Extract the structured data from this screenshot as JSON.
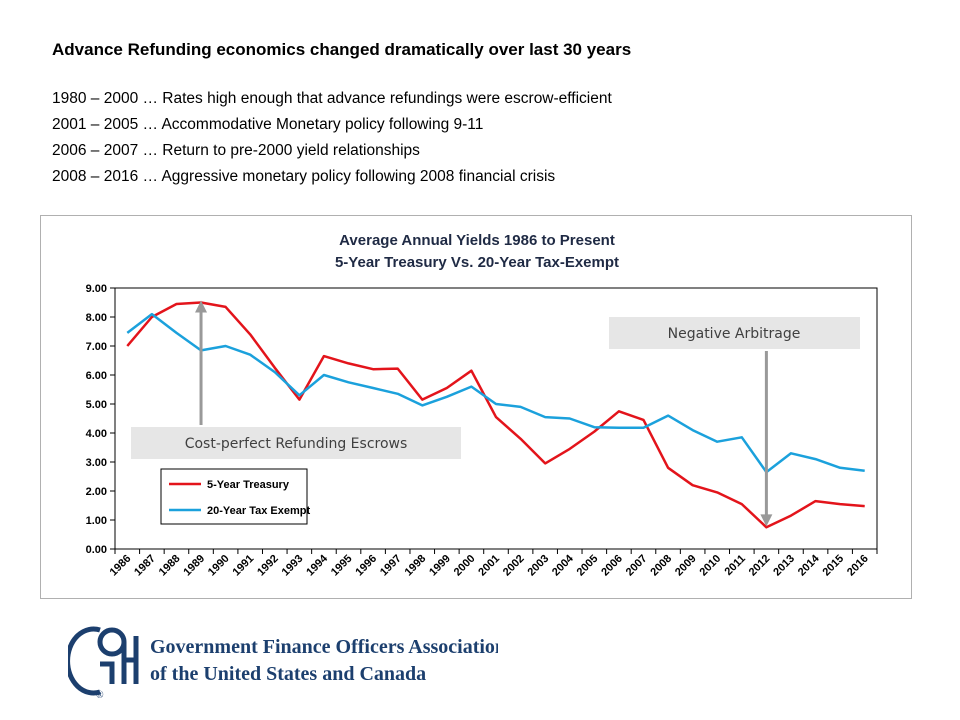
{
  "slide": {
    "title": "Advance Refunding economics changed dramatically over last 30 years",
    "bullets": [
      "1980 – 2000 … Rates high enough that advance refundings were escrow-efficient",
      "2001 – 2005 … Accommodative Monetary policy following 9-11",
      "2006 – 2007 … Return to pre-2000 yield relationships",
      "2008 – 2016 … Aggressive monetary policy following 2008 financial crisis"
    ]
  },
  "chart_data": {
    "type": "line",
    "title": "Average Annual Yields 1986 to Present",
    "subtitle": "5-Year Treasury  Vs.  20-Year Tax-Exempt",
    "x": [
      "1986",
      "1987",
      "1988",
      "1989",
      "1990",
      "1991",
      "1992",
      "1993",
      "1994",
      "1995",
      "1996",
      "1997",
      "1998",
      "1999",
      "2000",
      "2001",
      "2002",
      "2003",
      "2004",
      "2005",
      "2006",
      "2007",
      "2008",
      "2009",
      "2010",
      "2011",
      "2012",
      "2013",
      "2014",
      "2015",
      "2016"
    ],
    "ylim": [
      0,
      9
    ],
    "yticks": [
      "0.00",
      "1.00",
      "2.00",
      "3.00",
      "4.00",
      "5.00",
      "6.00",
      "7.00",
      "8.00",
      "9.00"
    ],
    "grid": false,
    "legend_position": "bottom-left",
    "series": [
      {
        "name": "5-Year Treasury",
        "color": "#e3141b",
        "values": [
          7.0,
          8.0,
          8.45,
          8.5,
          8.35,
          7.4,
          6.25,
          5.15,
          6.65,
          6.4,
          6.2,
          6.22,
          5.15,
          5.55,
          6.15,
          4.55,
          3.8,
          2.95,
          3.45,
          4.05,
          4.75,
          4.45,
          2.8,
          2.2,
          1.95,
          1.55,
          0.75,
          1.15,
          1.65,
          1.55,
          1.48
        ]
      },
      {
        "name": "20-Year Tax Exempt",
        "color": "#1ba1dc",
        "values": [
          7.45,
          8.1,
          7.45,
          6.85,
          7.0,
          6.7,
          6.1,
          5.3,
          6.0,
          5.75,
          5.55,
          5.35,
          4.95,
          5.25,
          5.6,
          5.0,
          4.9,
          4.55,
          4.5,
          4.2,
          4.18,
          4.18,
          4.6,
          4.1,
          3.7,
          3.85,
          2.65,
          3.3,
          3.1,
          2.8,
          2.7
        ]
      }
    ],
    "annotations": [
      {
        "text": "Cost-perfect Refunding Escrows",
        "arrow_to_year": "1989",
        "arrow_to_value": 8.5
      },
      {
        "text": "Negative Arbitrage",
        "arrow_to_year": "2012",
        "arrow_to_value": 0.85
      }
    ]
  },
  "footer": {
    "org_line1": "Government Finance Officers Association",
    "org_line2": "of the United States and Canada",
    "logo_letters": "GFOA",
    "logo_mark": "®",
    "brand_color": "#1c3f6e"
  }
}
